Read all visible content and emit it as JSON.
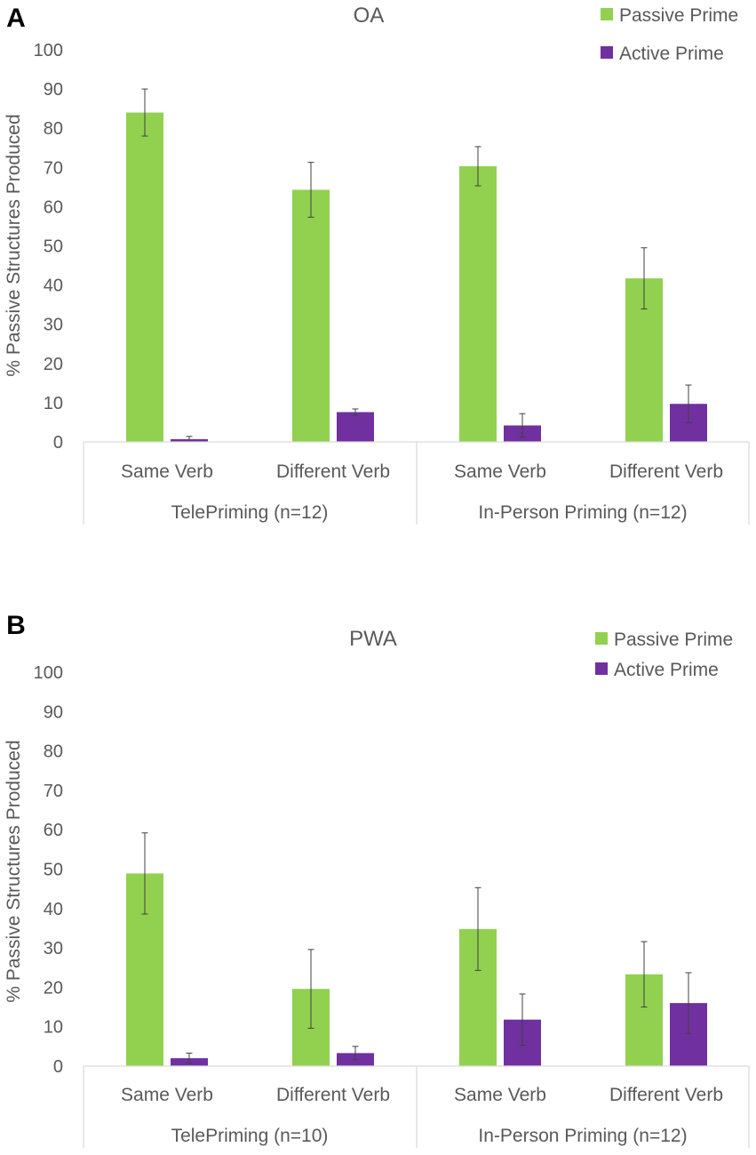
{
  "chart_data": [
    {
      "panel_label": "A",
      "type": "bar",
      "title": "OA",
      "ylabel": "% Passive Structures Produced",
      "xlabel": "",
      "ylim": [
        0,
        100
      ],
      "yticks": [
        0,
        10,
        20,
        30,
        40,
        50,
        60,
        70,
        80,
        90,
        100
      ],
      "grid": false,
      "legend_position": "top-right",
      "categories": [
        "Same Verb",
        "Different Verb",
        "Same Verb",
        "Different Verb"
      ],
      "groups": [
        {
          "label": "TelePriming (n=12)",
          "span": 2
        },
        {
          "label": "In-Person Priming (n=12)",
          "span": 2
        }
      ],
      "series": [
        {
          "name": "Passive Prime",
          "color": "#92d050",
          "values": [
            84,
            64.3,
            70.3,
            41.7
          ],
          "errors": [
            6,
            7,
            5,
            7.8
          ]
        },
        {
          "name": "Active Prime",
          "color": "#7030a0",
          "values": [
            0.7,
            7.6,
            4.2,
            9.7
          ],
          "errors": [
            0.7,
            0.8,
            3,
            4.8
          ]
        }
      ]
    },
    {
      "panel_label": "B",
      "type": "bar",
      "title": "PWA",
      "ylabel": "% Passive Structures Produced",
      "xlabel": "",
      "ylim": [
        0,
        100
      ],
      "yticks": [
        0,
        10,
        20,
        30,
        40,
        50,
        60,
        70,
        80,
        90,
        100
      ],
      "grid": false,
      "legend_position": "top-right",
      "categories": [
        "Same Verb",
        "Different Verb",
        "Same Verb",
        "Different Verb"
      ],
      "groups": [
        {
          "label": "TelePriming (n=10)",
          "span": 2
        },
        {
          "label": "In-Person Priming (n=12)",
          "span": 2
        }
      ],
      "series": [
        {
          "name": "Passive Prime",
          "color": "#92d050",
          "values": [
            48.9,
            19.6,
            34.8,
            23.3
          ],
          "errors": [
            10.3,
            10,
            10.5,
            8.3
          ]
        },
        {
          "name": "Active Prime",
          "color": "#7030a0",
          "values": [
            2,
            3.3,
            11.8,
            16
          ],
          "errors": [
            1.3,
            1.7,
            6.5,
            7.7
          ]
        }
      ]
    }
  ]
}
